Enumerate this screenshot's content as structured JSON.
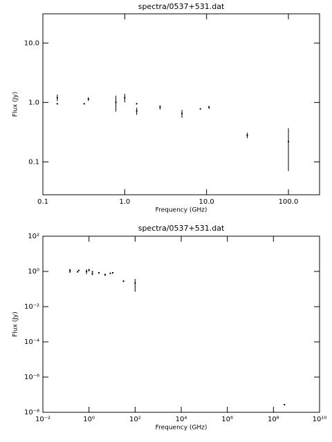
{
  "chart_data": [
    {
      "type": "scatter",
      "title": "spectra/0537+531.dat",
      "x_label": "Frequency (GHz)",
      "y_label": "Flux (Jy)",
      "log_x": true,
      "log_y": true,
      "color": "#000000",
      "x": [
        0.15,
        0.15,
        0.32,
        0.36,
        0.78,
        1.0,
        1.4,
        1.4,
        2.7,
        5.0,
        8.4,
        10.7,
        31.4,
        100
      ],
      "values": [
        1.2,
        0.95,
        0.95,
        1.14,
        1.0,
        1.2,
        0.72,
        0.95,
        0.83,
        0.65,
        0.78,
        0.83,
        0.28,
        0.22
      ],
      "errors": [
        0.15,
        null,
        null,
        0.08,
        0.3,
        0.2,
        0.1,
        null,
        0.07,
        0.1,
        null,
        0.05,
        0.03,
        0.15
      ],
      "xlim": [
        0.1,
        240
      ],
      "ylim": [
        0.028,
        31
      ],
      "xticks": [
        {
          "value": 0.1,
          "label": "0.1"
        },
        {
          "value": 1,
          "label": "1.0"
        },
        {
          "value": 10,
          "label": "10.0"
        },
        {
          "value": 100,
          "label": "100.0"
        }
      ],
      "yticks": [
        0.1,
        {
          "value": 1,
          "label": "1.0"
        },
        {
          "value": 10,
          "label": "10.0"
        }
      ]
    },
    {
      "type": "scatter",
      "title": "spectra/0537+531.dat",
      "x_label": "Frequency (GHz)",
      "y_label": "Flux (Jy)",
      "log_x": true,
      "log_y": true,
      "color": "#000000",
      "x": [
        0.15,
        0.15,
        0.32,
        0.36,
        0.78,
        1.0,
        1.4,
        1.4,
        2.7,
        5.0,
        8.4,
        10.7,
        31.4,
        100,
        300000000
      ],
      "values": [
        1.2,
        0.95,
        0.95,
        1.14,
        1.0,
        1.2,
        0.72,
        0.95,
        0.83,
        0.65,
        0.78,
        0.83,
        0.28,
        0.22,
        2.7e-08
      ],
      "errors": [
        0.15,
        null,
        null,
        0.08,
        0.3,
        0.2,
        0.1,
        null,
        0.07,
        0.1,
        null,
        0.05,
        0.03,
        0.15,
        null
      ],
      "xlim": [
        0.01,
        10000000000
      ],
      "ylim": [
        1e-08,
        100
      ],
      "xticks": [
        {
          "value": 0.01,
          "label": "10⁻²"
        },
        {
          "value": 1,
          "label": "10⁰"
        },
        {
          "value": 100,
          "label": "10²"
        },
        {
          "value": 10000,
          "label": "10⁴"
        },
        {
          "value": 1000000,
          "label": "10⁶"
        },
        {
          "value": 100000000,
          "label": "10⁸"
        },
        {
          "value": 10000000000,
          "label": "10¹⁰"
        }
      ],
      "yticks": [
        {
          "value": 100,
          "label": "10²"
        },
        {
          "value": 1,
          "label": "10⁰"
        },
        {
          "value": 0.01,
          "label": "10⁻²"
        },
        {
          "value": 0.0001,
          "label": "10⁻⁴"
        },
        {
          "value": 1e-06,
          "label": "10⁻⁶"
        },
        {
          "value": 1e-08,
          "label": "10⁻⁸"
        }
      ]
    }
  ]
}
